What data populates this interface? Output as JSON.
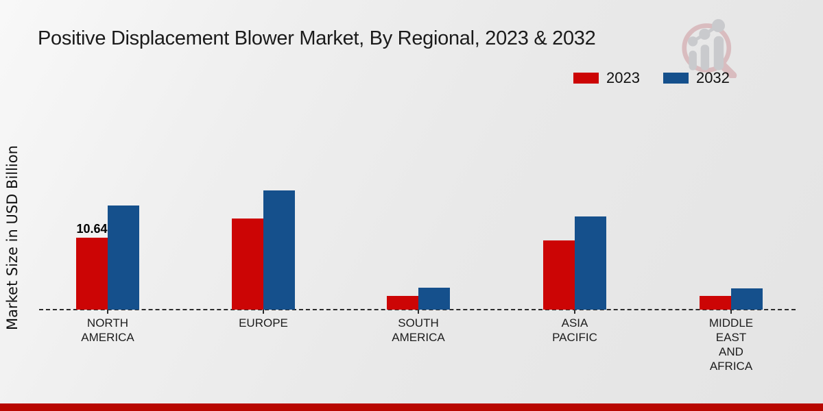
{
  "page": {
    "title": "Positive Displacement Blower Market, By Regional, 2023 & 2032",
    "ylabel": "Market Size in USD Billion"
  },
  "legend": {
    "position": "top-right",
    "items": [
      {
        "label": "2023",
        "color": "#cc0505"
      },
      {
        "label": "2032",
        "color": "#15508c"
      }
    ]
  },
  "chart_data": {
    "type": "bar",
    "title": "Positive Displacement Blower Market, By Regional, 2023 & 2032",
    "ylabel": "Market Size in USD Billion",
    "xlabel": "",
    "categories": [
      "NORTH AMERICA",
      "EUROPE",
      "SOUTH AMERICA",
      "ASIA PACIFIC",
      "MIDDLE EAST AND AFRICA"
    ],
    "category_label_lines": [
      [
        "NORTH",
        "AMERICA"
      ],
      [
        "EUROPE"
      ],
      [
        "SOUTH",
        "AMERICA"
      ],
      [
        "ASIA",
        "PACIFIC"
      ],
      [
        "MIDDLE",
        "EAST",
        "AND",
        "AFRICA"
      ]
    ],
    "series": [
      {
        "name": "2023",
        "color": "#cc0505",
        "values": [
          10.64,
          13.45,
          2.0,
          10.2,
          2.0
        ]
      },
      {
        "name": "2032",
        "color": "#15508c",
        "values": [
          15.4,
          17.6,
          3.25,
          13.8,
          3.15
        ]
      }
    ],
    "data_labels": [
      {
        "series_index": 0,
        "category_index": 0,
        "text": "10.64"
      }
    ],
    "ylim": [
      0,
      20
    ],
    "grid": false,
    "baseline": "dashed",
    "legend_position": "top-right"
  },
  "branding": {
    "watermark_icon": "magnifier-bar-chart-logo",
    "footer_bar_color": "#b80700"
  },
  "colors": {
    "background_start": "#f8f8f8",
    "background_end": "#e4e4e4",
    "series_2023": "#cc0505",
    "series_2032": "#15508c",
    "axis_line": "#2b2b2b",
    "text": "#1b1b1b",
    "watermark_red": "#d9bcbf",
    "watermark_gray": "#c9cacd"
  }
}
